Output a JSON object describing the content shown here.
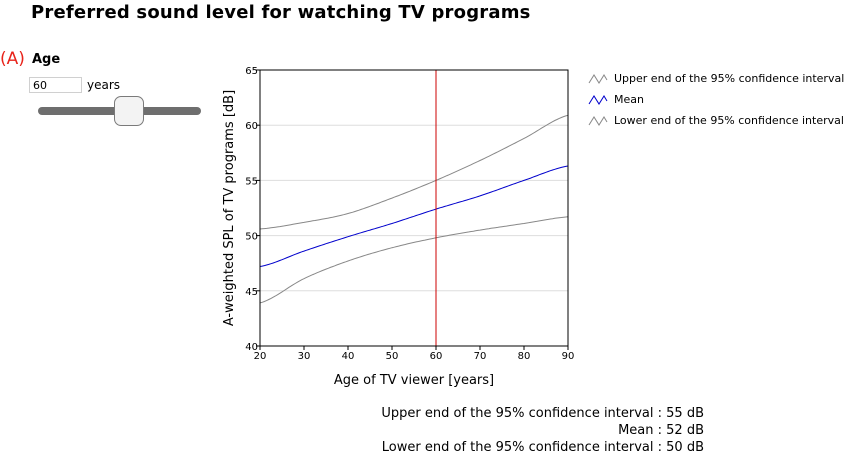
{
  "page": {
    "title": "Preferred sound level for watching TV programs"
  },
  "panel": {
    "label": "(A)",
    "title": "Age",
    "age_value": "60",
    "age_unit": "years"
  },
  "slider": {
    "min": 20,
    "max": 90,
    "value": 60
  },
  "colors": {
    "upper": "#888888",
    "mean": "#0000cc",
    "lower": "#888888",
    "marker": "#cc0000",
    "grid": "#dddddd"
  },
  "readout": {
    "upper": "Upper end of the 95% confidence interval : 55 dB",
    "mean": "Mean : 52 dB",
    "lower": "Lower end of the 95% confidence interval : 50 dB"
  },
  "chart_data": {
    "type": "line",
    "xlabel": "Age of TV viewer [years]",
    "ylabel": "A-weighted SPL of TV programs [dB]",
    "xlim": [
      20,
      90
    ],
    "ylim": [
      40,
      65
    ],
    "xticks": [
      "20",
      "30",
      "40",
      "50",
      "60",
      "70",
      "80",
      "90"
    ],
    "yticks": [
      "40",
      "45",
      "50",
      "55",
      "60",
      "65"
    ],
    "grid": "horizontal",
    "legend_position": "right",
    "marker_x": 60,
    "x": [
      20,
      30,
      40,
      50,
      60,
      70,
      80,
      90
    ],
    "series": [
      {
        "name": "Upper end of the 95% confidence interval",
        "values": [
          50.6,
          51.2,
          52.0,
          53.4,
          55.0,
          56.8,
          58.8,
          60.9
        ]
      },
      {
        "name": "Mean",
        "values": [
          47.2,
          48.6,
          49.9,
          51.1,
          52.4,
          53.6,
          55.0,
          56.3
        ]
      },
      {
        "name": "Lower end of the 95% confidence interval",
        "values": [
          43.9,
          46.1,
          47.7,
          48.9,
          49.8,
          50.5,
          51.1,
          51.7
        ]
      }
    ]
  }
}
